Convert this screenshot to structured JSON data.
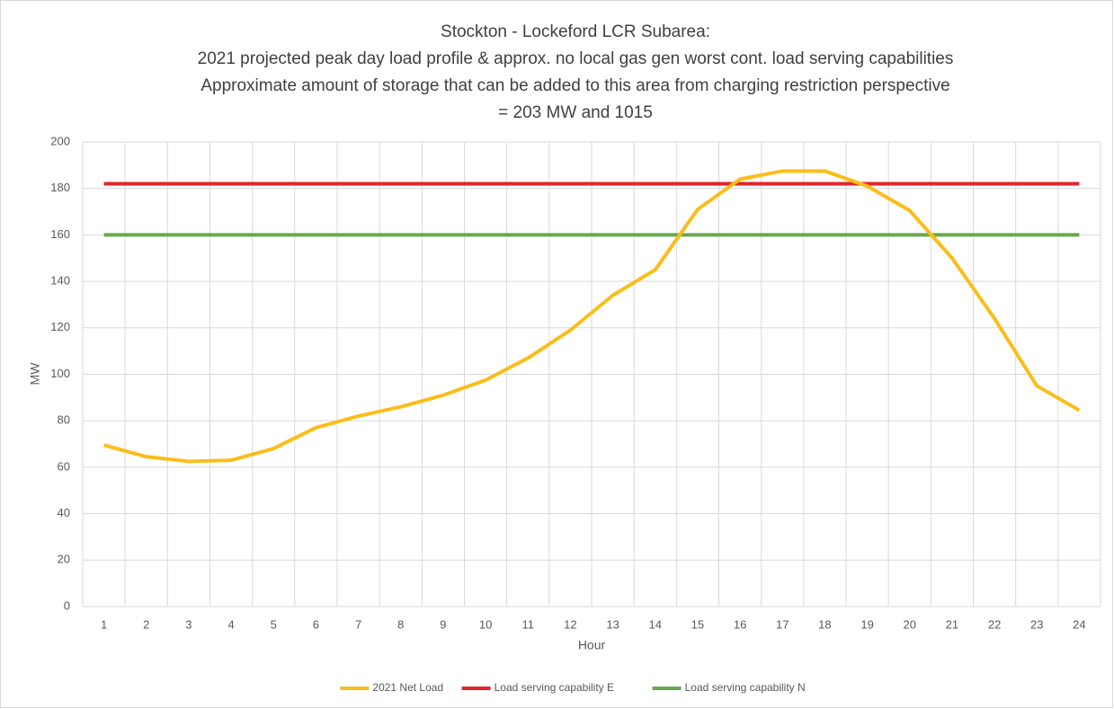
{
  "chart_data": {
    "type": "line",
    "title": "Stockton - Lockeford LCR Subarea:",
    "subtitle": [
      "2021 projected peak day load profile & approx. no local gas gen worst cont. load serving capabilities",
      "Approximate amount of storage that can be added to this area from charging restriction perspective",
      "= 203 MW and 1015"
    ],
    "x_label": "Hour",
    "y_label": "MW",
    "categories": [
      1,
      2,
      3,
      4,
      5,
      6,
      7,
      8,
      9,
      10,
      11,
      12,
      13,
      14,
      15,
      16,
      17,
      18,
      19,
      20,
      21,
      22,
      23,
      24
    ],
    "series": [
      {
        "name": "2021 Net Load",
        "color": "#fbbd19",
        "values": [
          69.5,
          64.5,
          62.5,
          63,
          68,
          77,
          82,
          86,
          91,
          97.5,
          107,
          119,
          134,
          145,
          171,
          184,
          187.5,
          187.5,
          181,
          170.5,
          150,
          124,
          95,
          84.5
        ]
      },
      {
        "name": "Load serving capability E",
        "color": "#e3242b",
        "values": [
          182,
          182,
          182,
          182,
          182,
          182,
          182,
          182,
          182,
          182,
          182,
          182,
          182,
          182,
          182,
          182,
          182,
          182,
          182,
          182,
          182,
          182,
          182,
          182
        ]
      },
      {
        "name": "Load serving capability N",
        "color": "#6aa84f",
        "values": [
          160,
          160,
          160,
          160,
          160,
          160,
          160,
          160,
          160,
          160,
          160,
          160,
          160,
          160,
          160,
          160,
          160,
          160,
          160,
          160,
          160,
          160,
          160,
          160
        ]
      }
    ],
    "ylim": [
      0,
      200
    ],
    "yticks": [
      0,
      20,
      40,
      60,
      80,
      100,
      120,
      140,
      160,
      180,
      200
    ],
    "grid": true,
    "legend": "bottom"
  }
}
